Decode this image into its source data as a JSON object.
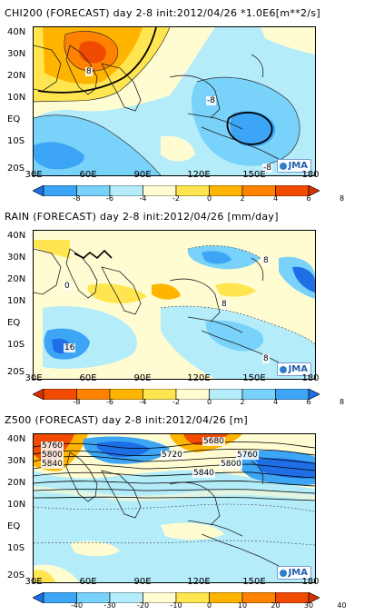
{
  "panels": [
    {
      "title": "CHI200 (FORECAST) day 2-8 init:2012/04/26  *1.0E6[m**2/s]",
      "lat_labels": [
        "40N",
        "30N",
        "20N",
        "10N",
        "EQ",
        "10S",
        "20S"
      ],
      "lon_labels": [
        "30E",
        "60E",
        "90E",
        "120E",
        "150E",
        "180"
      ],
      "contour_labels": [
        "8",
        "-8",
        "-8"
      ],
      "colorbar_ticks": [
        "-8",
        "-6",
        "-4",
        "-2",
        "0",
        "2",
        "4",
        "6",
        "8"
      ],
      "colorbar_colors": [
        "#1e6ee6",
        "#3ca5f5",
        "#78d2fa",
        "#b4ecfa",
        "#fffcd2",
        "#ffe650",
        "#ffb400",
        "#ff8200",
        "#f04b00",
        "#d23200"
      ],
      "logo": "JMA"
    },
    {
      "title": "RAIN (FORECAST) day 2-8 init:2012/04/26   [mm/day]",
      "lat_labels": [
        "40N",
        "30N",
        "20N",
        "10N",
        "EQ",
        "10S",
        "20S"
      ],
      "lon_labels": [
        "30E",
        "60E",
        "90E",
        "120E",
        "150E",
        "180"
      ],
      "contour_labels": [
        "0",
        "8",
        "8",
        "16",
        "8"
      ],
      "colorbar_ticks": [
        "-8",
        "-6",
        "-4",
        "-2",
        "0",
        "2",
        "4",
        "6",
        "8"
      ],
      "colorbar_colors": [
        "#d23200",
        "#f04b00",
        "#ff8200",
        "#ffb400",
        "#ffe650",
        "#fffcd2",
        "#b4ecfa",
        "#78d2fa",
        "#3ca5f5",
        "#1e6ee6"
      ],
      "logo": "JMA"
    },
    {
      "title": "Z500 (FORECAST) day 2-8 init:2012/04/26  [m]",
      "lat_labels": [
        "40N",
        "30N",
        "20N",
        "10N",
        "EQ",
        "10S",
        "20S"
      ],
      "lon_labels": [
        "30E",
        "60E",
        "90E",
        "120E",
        "150E",
        "180"
      ],
      "contour_labels": [
        "5760",
        "5800",
        "5840",
        "5720",
        "5680",
        "5760",
        "5800",
        "5840"
      ],
      "colorbar_ticks": [
        "-40",
        "-30",
        "-20",
        "-10",
        "0",
        "10",
        "20",
        "30",
        "40"
      ],
      "colorbar_colors": [
        "#1e6ee6",
        "#3ca5f5",
        "#78d2fa",
        "#b4ecfa",
        "#fffcd2",
        "#ffe650",
        "#ffb400",
        "#ff8200",
        "#f04b00",
        "#d23200"
      ],
      "logo": "JMA"
    }
  ]
}
